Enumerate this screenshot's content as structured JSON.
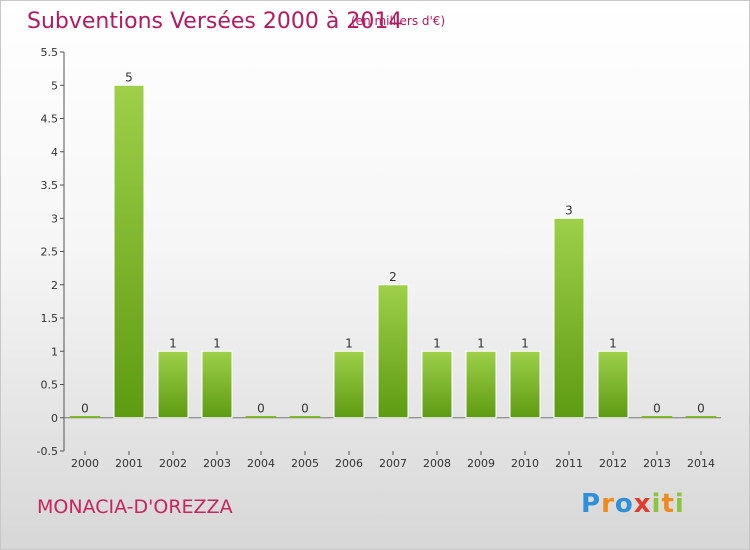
{
  "header": {
    "title": "Subventions Versées 2000 à 2014",
    "unit": "(en milliers d'€)"
  },
  "footer": {
    "commune": "MONACIA-D'OREZZA",
    "brand": "Proxiti"
  },
  "colors": {
    "title": "#b5195f",
    "bar_light": "#9ed04a",
    "bar_dark": "#5e9b12"
  },
  "chart_data": {
    "type": "bar",
    "title": "Subventions Versées 2000 à 2014",
    "subtitle": "(en milliers d'€)",
    "xlabel": "",
    "ylabel": "",
    "categories": [
      "2000",
      "2001",
      "2002",
      "2003",
      "2004",
      "2005",
      "2006",
      "2007",
      "2008",
      "2009",
      "2010",
      "2011",
      "2012",
      "2013",
      "2014"
    ],
    "values": [
      0,
      5,
      1,
      1,
      0,
      0,
      1,
      2,
      1,
      1,
      1,
      3,
      1,
      0,
      0
    ],
    "data_labels": [
      "0",
      "5",
      "1",
      "1",
      "0",
      "0",
      "1",
      "2",
      "1",
      "1",
      "1",
      "3",
      "1",
      "0",
      "0"
    ],
    "yticks": [
      "-0.5",
      "0",
      "0.5",
      "1",
      "1.5",
      "2",
      "2.5",
      "3",
      "3.5",
      "4",
      "4.5",
      "5",
      "5.5"
    ],
    "ylim": [
      -0.5,
      5.5
    ],
    "grid": false,
    "legend": "none"
  }
}
